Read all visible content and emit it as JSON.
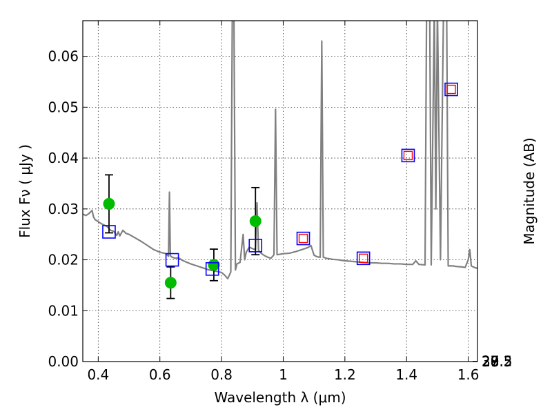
{
  "chart_data": {
    "type": "scatter",
    "title": "",
    "xlabel": "Wavelength  λ (μm)",
    "ylabel": "Flux  Fν  ( μJy )",
    "ylabel_right": "Magnitude (AB)",
    "xlim": [
      0.35,
      1.63
    ],
    "ylim": [
      0.0,
      0.067
    ],
    "grid": true,
    "x_ticks": [
      0.4,
      0.6,
      0.8,
      1.0,
      1.2,
      1.4,
      1.6
    ],
    "x_tick_labels": [
      "0.4",
      "0.6",
      "0.8",
      "1",
      "1.2",
      "1.4",
      "1.6"
    ],
    "y_ticks": [
      0.0,
      0.01,
      0.02,
      0.03,
      0.04,
      0.05,
      0.06
    ],
    "y_tick_labels": [
      "0.00",
      "0.01",
      "0.02",
      "0.03",
      "0.04",
      "0.05",
      "0.06"
    ],
    "right_ticks": [
      {
        "label": "27",
        "mag": 27.0
      },
      {
        "label": "27.2",
        "mag": 27.2
      },
      {
        "label": "27.5",
        "mag": 27.5
      },
      {
        "label": "28",
        "mag": 28.0
      },
      {
        "label": "28.5",
        "mag": 28.5
      },
      {
        "label": "29",
        "mag": 29.0
      },
      {
        "label": "30",
        "mag": 30.0
      }
    ],
    "series": [
      {
        "kind": "line",
        "color": "#808080",
        "points": [
          [
            0.35,
            0.029
          ],
          [
            0.36,
            0.0287
          ],
          [
            0.37,
            0.0291
          ],
          [
            0.38,
            0.0297
          ],
          [
            0.385,
            0.0284
          ],
          [
            0.39,
            0.0279
          ],
          [
            0.4,
            0.0275
          ],
          [
            0.41,
            0.0271
          ],
          [
            0.42,
            0.0268
          ],
          [
            0.43,
            0.0265
          ],
          [
            0.44,
            0.0258
          ],
          [
            0.45,
            0.0256
          ],
          [
            0.46,
            0.0248
          ],
          [
            0.465,
            0.0255
          ],
          [
            0.47,
            0.0247
          ],
          [
            0.48,
            0.0258
          ],
          [
            0.49,
            0.0252
          ],
          [
            0.5,
            0.025
          ],
          [
            0.52,
            0.0243
          ],
          [
            0.54,
            0.0236
          ],
          [
            0.56,
            0.0228
          ],
          [
            0.58,
            0.022
          ],
          [
            0.6,
            0.0215
          ],
          [
            0.62,
            0.0212
          ],
          [
            0.628,
            0.0207
          ],
          [
            0.631,
            0.0333
          ],
          [
            0.634,
            0.0208
          ],
          [
            0.64,
            0.0205
          ],
          [
            0.65,
            0.0203
          ],
          [
            0.66,
            0.0204
          ],
          [
            0.67,
            0.02
          ],
          [
            0.68,
            0.0197
          ],
          [
            0.7,
            0.0192
          ],
          [
            0.72,
            0.0188
          ],
          [
            0.74,
            0.0184
          ],
          [
            0.76,
            0.018
          ],
          [
            0.78,
            0.0178
          ],
          [
            0.8,
            0.0175
          ],
          [
            0.81,
            0.017
          ],
          [
            0.82,
            0.0163
          ],
          [
            0.83,
            0.0176
          ],
          [
            0.835,
            0.07
          ],
          [
            0.84,
            0.07
          ],
          [
            0.845,
            0.018
          ],
          [
            0.85,
            0.0192
          ],
          [
            0.86,
            0.0195
          ],
          [
            0.87,
            0.025
          ],
          [
            0.875,
            0.02
          ],
          [
            0.88,
            0.0215
          ],
          [
            0.89,
            0.0225
          ],
          [
            0.9,
            0.0222
          ],
          [
            0.91,
            0.022
          ],
          [
            0.915,
            0.0312
          ],
          [
            0.92,
            0.0218
          ],
          [
            0.93,
            0.0212
          ],
          [
            0.94,
            0.0208
          ],
          [
            0.95,
            0.0205
          ],
          [
            0.96,
            0.0203
          ],
          [
            0.97,
            0.021
          ],
          [
            0.975,
            0.0496
          ],
          [
            0.98,
            0.021
          ],
          [
            0.99,
            0.0211
          ],
          [
            1.0,
            0.0212
          ],
          [
            1.02,
            0.0213
          ],
          [
            1.04,
            0.0216
          ],
          [
            1.06,
            0.022
          ],
          [
            1.08,
            0.0224
          ],
          [
            1.09,
            0.0228
          ],
          [
            1.1,
            0.0209
          ],
          [
            1.11,
            0.0206
          ],
          [
            1.12,
            0.0205
          ],
          [
            1.125,
            0.063
          ],
          [
            1.13,
            0.0205
          ],
          [
            1.14,
            0.0203
          ],
          [
            1.16,
            0.0201
          ],
          [
            1.18,
            0.02
          ],
          [
            1.2,
            0.0198
          ],
          [
            1.22,
            0.0197
          ],
          [
            1.24,
            0.0196
          ],
          [
            1.26,
            0.0195
          ],
          [
            1.28,
            0.0194
          ],
          [
            1.3,
            0.0194
          ],
          [
            1.32,
            0.0193
          ],
          [
            1.34,
            0.0193
          ],
          [
            1.36,
            0.0192
          ],
          [
            1.38,
            0.0192
          ],
          [
            1.4,
            0.0191
          ],
          [
            1.42,
            0.0191
          ],
          [
            1.43,
            0.0198
          ],
          [
            1.44,
            0.0191
          ],
          [
            1.46,
            0.019
          ],
          [
            1.465,
            0.07
          ],
          [
            1.475,
            0.07
          ],
          [
            1.48,
            0.019
          ],
          [
            1.49,
            0.07
          ],
          [
            1.495,
            0.03
          ],
          [
            1.5,
            0.07
          ],
          [
            1.51,
            0.02
          ],
          [
            1.52,
            0.07
          ],
          [
            1.53,
            0.07
          ],
          [
            1.535,
            0.0188
          ],
          [
            1.55,
            0.0188
          ],
          [
            1.56,
            0.0187
          ],
          [
            1.58,
            0.0186
          ],
          [
            1.59,
            0.0185
          ],
          [
            1.6,
            0.02
          ],
          [
            1.605,
            0.022
          ],
          [
            1.61,
            0.0188
          ],
          [
            1.62,
            0.0185
          ],
          [
            1.63,
            0.0183
          ]
        ]
      },
      {
        "kind": "observed",
        "color": "#00bb00",
        "points": [
          {
            "x": 0.435,
            "y": 0.031,
            "err": 0.0057
          },
          {
            "x": 0.635,
            "y": 0.0155,
            "err": 0.0031
          },
          {
            "x": 0.775,
            "y": 0.019,
            "err": 0.0031
          },
          {
            "x": 0.91,
            "y": 0.0276,
            "err": 0.0066
          }
        ]
      },
      {
        "kind": "model-photometry",
        "color": "#0000ff",
        "inner_color": "#ff0000",
        "points": [
          {
            "x": 0.435,
            "y": 0.0255,
            "inner": false
          },
          {
            "x": 0.64,
            "y": 0.02,
            "inner": false
          },
          {
            "x": 0.77,
            "y": 0.0182,
            "inner": false
          },
          {
            "x": 0.91,
            "y": 0.0228,
            "inner": false
          },
          {
            "x": 1.065,
            "y": 0.0242,
            "inner": true
          },
          {
            "x": 1.26,
            "y": 0.0203,
            "inner": true
          },
          {
            "x": 1.405,
            "y": 0.0405,
            "inner": true
          },
          {
            "x": 1.545,
            "y": 0.0535,
            "inner": true
          }
        ]
      }
    ]
  }
}
